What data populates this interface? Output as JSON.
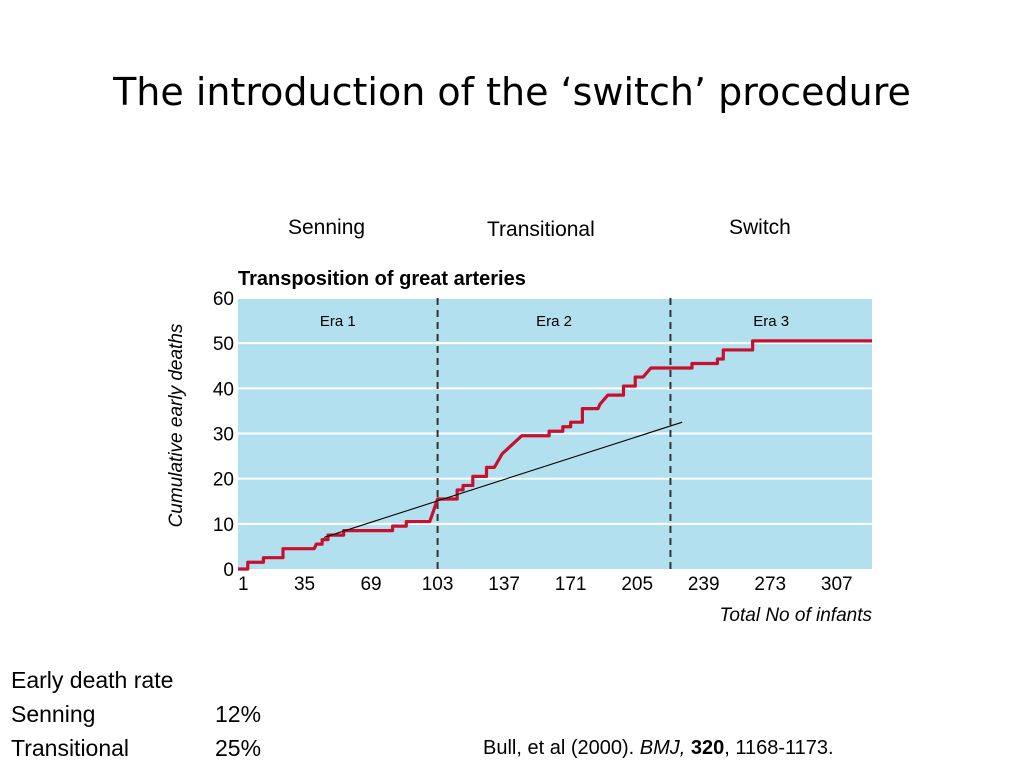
{
  "slide": {
    "title": "The introduction of the ‘switch’ procedure"
  },
  "era_captions": [
    "Senning",
    "Transitional",
    "Switch"
  ],
  "summary": {
    "heading": "Early death rate",
    "rows": [
      {
        "label": "Senning",
        "value": "12%"
      },
      {
        "label": "Transitional",
        "value": "25%"
      }
    ]
  },
  "citation": {
    "authors": "Bull, et al (2000). ",
    "journal": "BMJ,",
    "volume": "320",
    "pages": ", 1168-1173."
  },
  "chart_data": {
    "type": "line",
    "title": "Transposition of great arteries",
    "xlabel": "Total No of infants",
    "ylabel": "Cumulative early deaths",
    "xlim": [
      1,
      325
    ],
    "ylim": [
      0,
      60
    ],
    "xticks": [
      1,
      35,
      69,
      103,
      137,
      171,
      205,
      239,
      273,
      307
    ],
    "yticks": [
      0,
      10,
      20,
      30,
      40,
      50,
      60
    ],
    "grid": true,
    "era_boundaries": [
      103,
      222
    ],
    "era_labels": [
      "Era 1",
      "Era 2",
      "Era 3"
    ],
    "series": [
      {
        "name": "",
        "color": "#c8102e",
        "step_points": [
          [
            1,
            0
          ],
          [
            6,
            0
          ],
          [
            6,
            1.5
          ],
          [
            14,
            1.5
          ],
          [
            14,
            2.5
          ],
          [
            24,
            2.5
          ],
          [
            24,
            4.5
          ],
          [
            40,
            4.5
          ],
          [
            41,
            5.5
          ],
          [
            44,
            5.5
          ],
          [
            44,
            6.5
          ],
          [
            47,
            6.5
          ],
          [
            47,
            7.5
          ],
          [
            55,
            7.5
          ],
          [
            55,
            8.5
          ],
          [
            80,
            8.5
          ],
          [
            80,
            9.5
          ],
          [
            87,
            9.5
          ],
          [
            87,
            10.5
          ],
          [
            99,
            10.5
          ],
          [
            103,
            15.5
          ],
          [
            113,
            15.5
          ],
          [
            113,
            17.5
          ],
          [
            116,
            17.5
          ],
          [
            116,
            18.5
          ],
          [
            121,
            18.5
          ],
          [
            121,
            20.5
          ],
          [
            128,
            20.5
          ],
          [
            128,
            22.5
          ],
          [
            132,
            22.5
          ],
          [
            136,
            25.5
          ],
          [
            141,
            27.5
          ],
          [
            146,
            29.5
          ],
          [
            160,
            29.5
          ],
          [
            160,
            30.5
          ],
          [
            167,
            30.5
          ],
          [
            167,
            31.5
          ],
          [
            171,
            31.5
          ],
          [
            171,
            32.5
          ],
          [
            177,
            32.5
          ],
          [
            177,
            35.5
          ],
          [
            185,
            35.5
          ],
          [
            186,
            36.5
          ],
          [
            190,
            38.5
          ],
          [
            198,
            38.5
          ],
          [
            198,
            40.5
          ],
          [
            204,
            40.5
          ],
          [
            204,
            42.5
          ],
          [
            208,
            42.5
          ],
          [
            212,
            44.5
          ],
          [
            222,
            44.5
          ],
          [
            233,
            44.5
          ],
          [
            233,
            45.5
          ],
          [
            246,
            45.5
          ],
          [
            246,
            46.5
          ],
          [
            249,
            46.5
          ],
          [
            249,
            48.5
          ],
          [
            264,
            48.5
          ],
          [
            264,
            50.5
          ],
          [
            325,
            50.5
          ]
        ]
      },
      {
        "name": "",
        "color": "#000000",
        "points": [
          [
            45,
            7
          ],
          [
            228,
            32.5
          ]
        ]
      }
    ]
  },
  "colors": {
    "plot_background": "#b2e0ef",
    "grid": "#ffffff",
    "step_line": "#c8102e",
    "trend_line": "#000000",
    "era_divider": "#333333"
  }
}
